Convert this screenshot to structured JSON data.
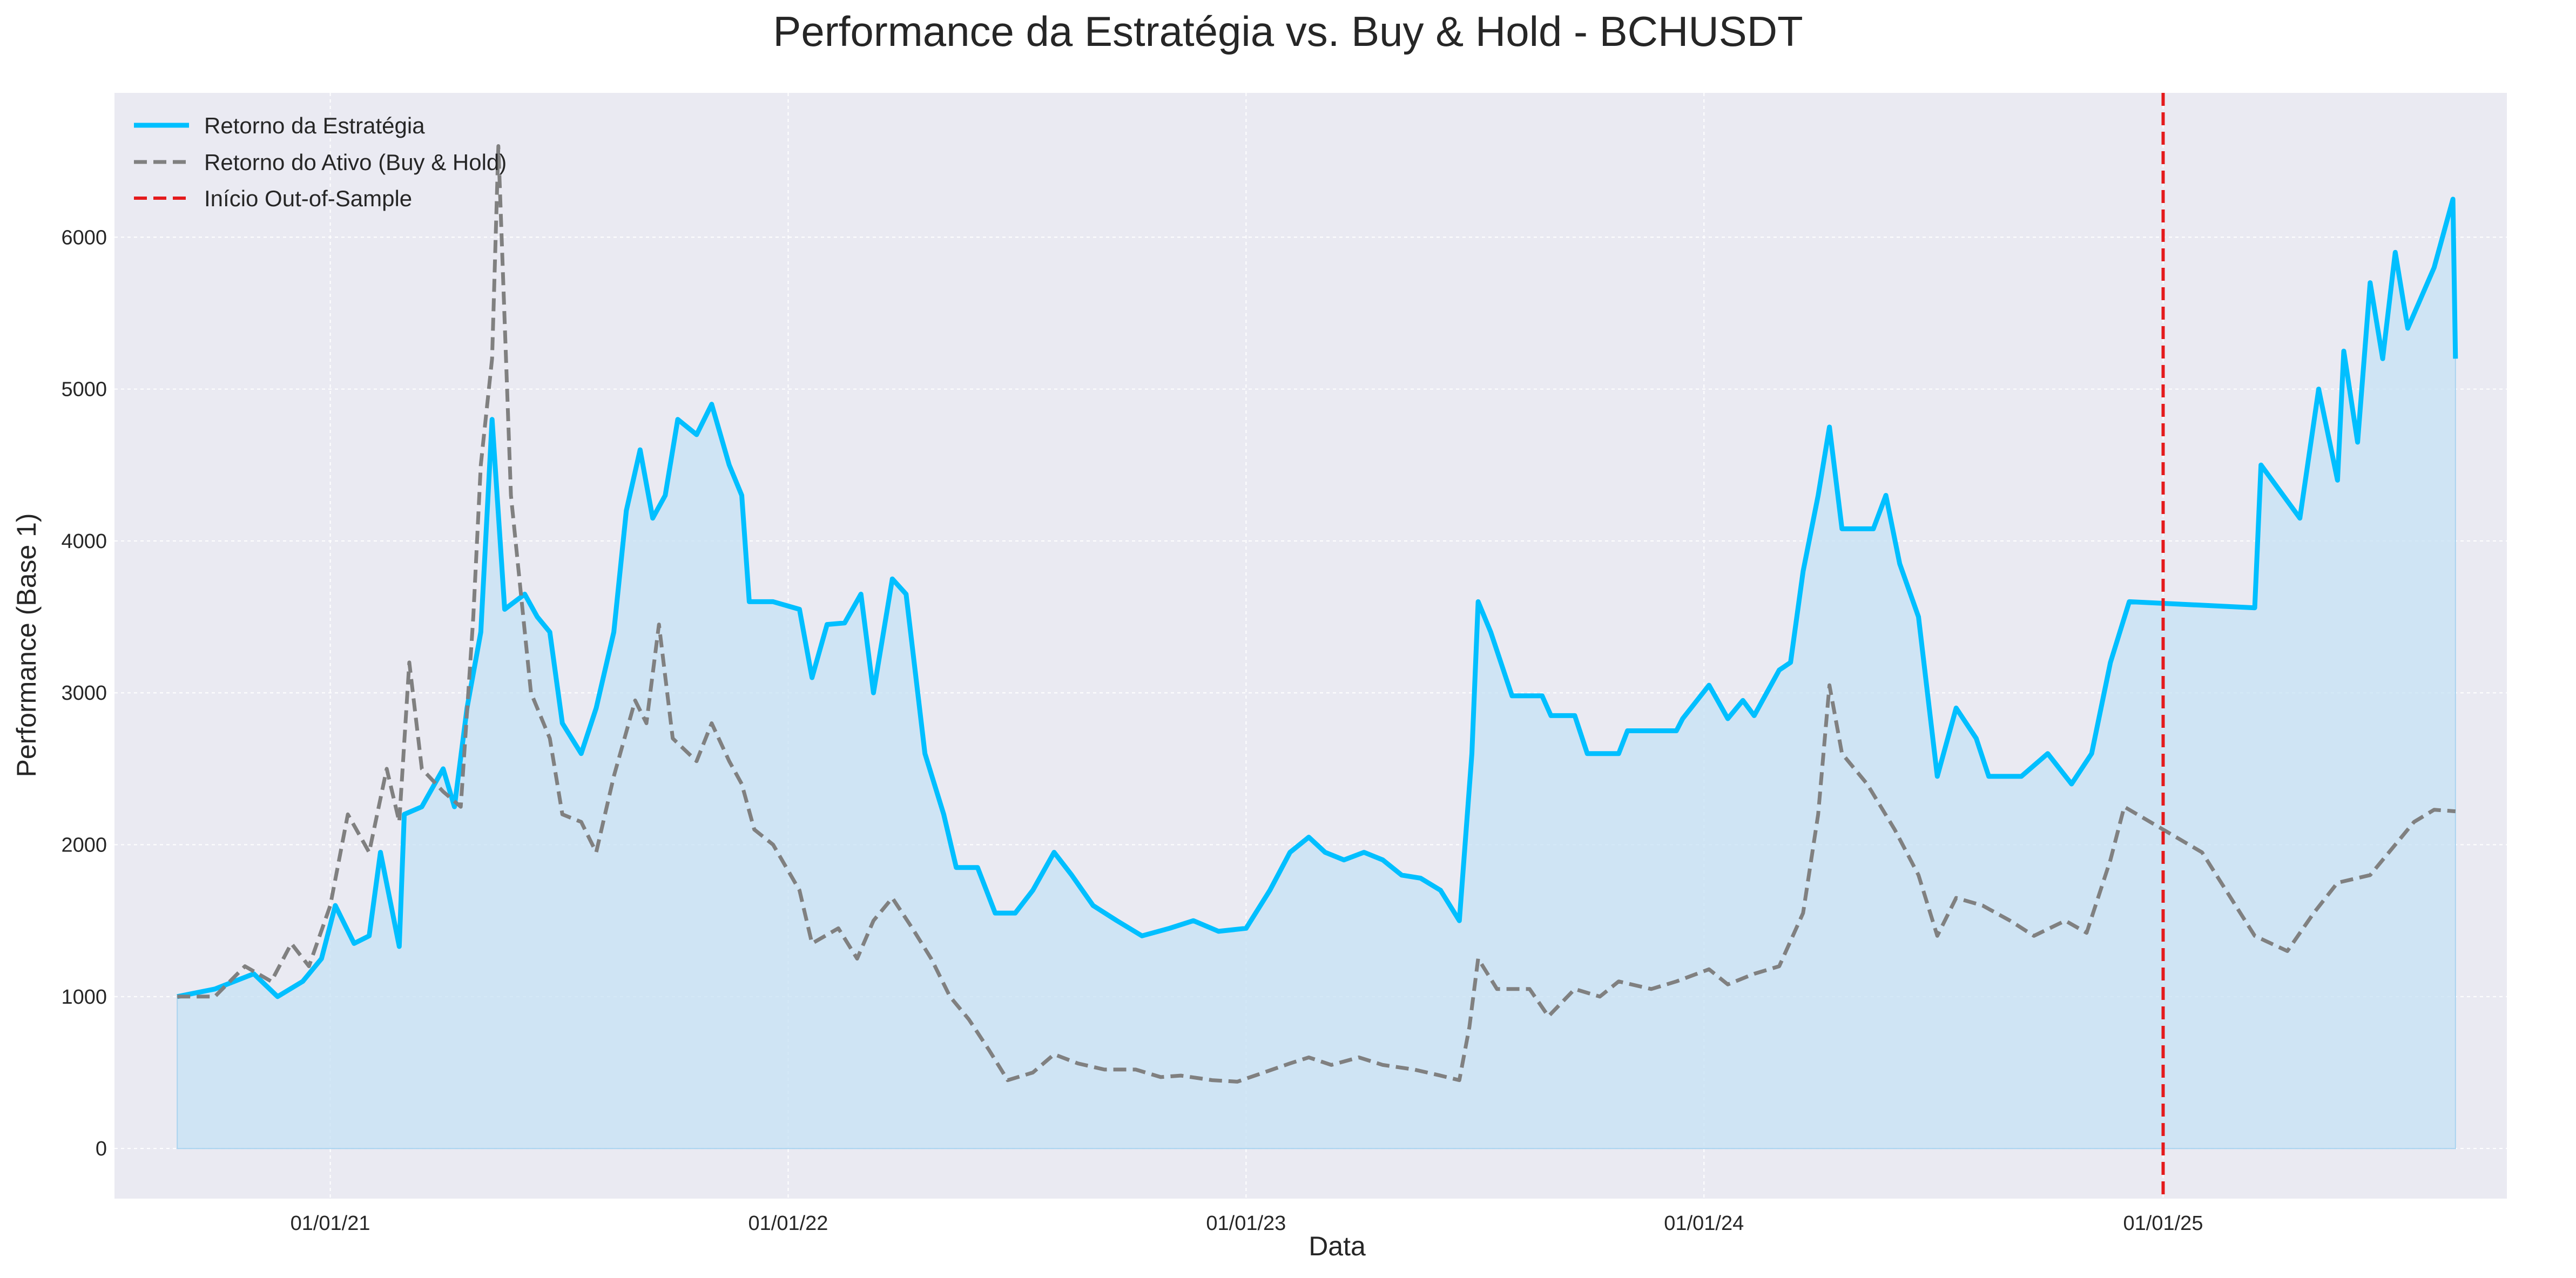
{
  "colors": {
    "background": "#eaeaf2",
    "grid": "#ffffff",
    "strategy": "#00bfff",
    "strategy_fill": "#c6e2f4",
    "asset": "#808080",
    "oos_line": "#e41a1c"
  },
  "chart_data": {
    "type": "line",
    "title": "Performance da Estratégia vs. Buy & Hold - BCHUSDT",
    "xlabel": "Data",
    "ylabel": "Performance (Base 1)",
    "x_tick_labels": [
      "01/01/21",
      "01/01/22",
      "01/01/23",
      "01/01/24",
      "01/01/25"
    ],
    "x_tick_dates": [
      "2021-01-01",
      "2022-01-01",
      "2023-01-01",
      "2024-01-01",
      "2025-01-01"
    ],
    "y_ticks": [
      0,
      1000,
      2000,
      3000,
      4000,
      5000,
      6000
    ],
    "xlim": [
      "2020-07-13",
      "2025-10-02"
    ],
    "ylim": [
      -330,
      6950
    ],
    "grid": true,
    "legend_position": "top-left",
    "out_of_sample_start": "2025-01-01",
    "series": [
      {
        "name": "Retorno da Estratégia",
        "style": "solid",
        "filled": true,
        "points": [
          [
            "2020-09-01",
            1000
          ],
          [
            "2020-10-01",
            1050
          ],
          [
            "2020-11-01",
            1150
          ],
          [
            "2020-11-20",
            1000
          ],
          [
            "2020-12-10",
            1100
          ],
          [
            "2020-12-25",
            1250
          ],
          [
            "2021-01-05",
            1600
          ],
          [
            "2021-01-20",
            1350
          ],
          [
            "2021-02-01",
            1400
          ],
          [
            "2021-02-10",
            1950
          ],
          [
            "2021-02-25",
            1330
          ],
          [
            "2021-03-01",
            2200
          ],
          [
            "2021-03-15",
            2250
          ],
          [
            "2021-04-01",
            2500
          ],
          [
            "2021-04-10",
            2250
          ],
          [
            "2021-04-20",
            2900
          ],
          [
            "2021-05-01",
            3400
          ],
          [
            "2021-05-10",
            4800
          ],
          [
            "2021-05-20",
            3550
          ],
          [
            "2021-06-05",
            3650
          ],
          [
            "2021-06-15",
            3500
          ],
          [
            "2021-06-25",
            3400
          ],
          [
            "2021-07-05",
            2800
          ],
          [
            "2021-07-20",
            2600
          ],
          [
            "2021-08-01",
            2900
          ],
          [
            "2021-08-15",
            3400
          ],
          [
            "2021-08-25",
            4200
          ],
          [
            "2021-09-05",
            4600
          ],
          [
            "2021-09-15",
            4150
          ],
          [
            "2021-09-25",
            4300
          ],
          [
            "2021-10-05",
            4800
          ],
          [
            "2021-10-20",
            4700
          ],
          [
            "2021-11-01",
            4900
          ],
          [
            "2021-11-15",
            4500
          ],
          [
            "2021-11-25",
            4300
          ],
          [
            "2021-12-01",
            3600
          ],
          [
            "2021-12-20",
            3600
          ],
          [
            "2022-01-10",
            3550
          ],
          [
            "2022-01-20",
            3100
          ],
          [
            "2022-02-01",
            3450
          ],
          [
            "2022-02-15",
            3460
          ],
          [
            "2022-02-28",
            3650
          ],
          [
            "2022-03-10",
            3000
          ],
          [
            "2022-03-25",
            3750
          ],
          [
            "2022-04-05",
            3650
          ],
          [
            "2022-04-20",
            2600
          ],
          [
            "2022-05-05",
            2200
          ],
          [
            "2022-05-15",
            1850
          ],
          [
            "2022-06-01",
            1850
          ],
          [
            "2022-06-15",
            1550
          ],
          [
            "2022-07-01",
            1550
          ],
          [
            "2022-07-15",
            1700
          ],
          [
            "2022-08-01",
            1950
          ],
          [
            "2022-08-15",
            1800
          ],
          [
            "2022-09-01",
            1600
          ],
          [
            "2022-09-20",
            1500
          ],
          [
            "2022-10-10",
            1400
          ],
          [
            "2022-11-01",
            1450
          ],
          [
            "2022-11-20",
            1500
          ],
          [
            "2022-12-10",
            1430
          ],
          [
            "2023-01-01",
            1450
          ],
          [
            "2023-01-20",
            1700
          ],
          [
            "2023-02-05",
            1950
          ],
          [
            "2023-02-20",
            2050
          ],
          [
            "2023-03-05",
            1950
          ],
          [
            "2023-03-20",
            1900
          ],
          [
            "2023-04-05",
            1950
          ],
          [
            "2023-04-20",
            1900
          ],
          [
            "2023-05-05",
            1800
          ],
          [
            "2023-05-20",
            1780
          ],
          [
            "2023-06-05",
            1700
          ],
          [
            "2023-06-20",
            1500
          ],
          [
            "2023-06-30",
            2600
          ],
          [
            "2023-07-05",
            3600
          ],
          [
            "2023-07-15",
            3400
          ],
          [
            "2023-08-01",
            2980
          ],
          [
            "2023-08-25",
            2980
          ],
          [
            "2023-09-01",
            2850
          ],
          [
            "2023-09-20",
            2850
          ],
          [
            "2023-09-30",
            2600
          ],
          [
            "2023-10-25",
            2600
          ],
          [
            "2023-11-01",
            2750
          ],
          [
            "2023-12-10",
            2750
          ],
          [
            "2023-12-15",
            2830
          ],
          [
            "2024-01-05",
            3050
          ],
          [
            "2024-01-20",
            2830
          ],
          [
            "2024-02-01",
            2950
          ],
          [
            "2024-02-10",
            2850
          ],
          [
            "2024-03-01",
            3150
          ],
          [
            "2024-03-10",
            3200
          ],
          [
            "2024-03-20",
            3800
          ],
          [
            "2024-04-01",
            4300
          ],
          [
            "2024-04-10",
            4750
          ],
          [
            "2024-04-20",
            4080
          ],
          [
            "2024-05-15",
            4080
          ],
          [
            "2024-05-25",
            4300
          ],
          [
            "2024-06-05",
            3850
          ],
          [
            "2024-06-20",
            3500
          ],
          [
            "2024-07-05",
            2450
          ],
          [
            "2024-07-20",
            2900
          ],
          [
            "2024-08-05",
            2700
          ],
          [
            "2024-08-15",
            2450
          ],
          [
            "2024-09-10",
            2450
          ],
          [
            "2024-10-01",
            2600
          ],
          [
            "2024-10-20",
            2400
          ],
          [
            "2024-11-05",
            2600
          ],
          [
            "2024-11-20",
            3200
          ],
          [
            "2024-12-05",
            3600
          ],
          [
            "2025-03-15",
            3560
          ],
          [
            "2025-03-20",
            4500
          ],
          [
            "2025-04-20",
            4150
          ],
          [
            "2025-05-05",
            5000
          ],
          [
            "2025-05-20",
            4400
          ],
          [
            "2025-05-25",
            5250
          ],
          [
            "2025-06-05",
            4650
          ],
          [
            "2025-06-15",
            5700
          ],
          [
            "2025-06-25",
            5200
          ],
          [
            "2025-07-05",
            5900
          ],
          [
            "2025-07-15",
            5400
          ],
          [
            "2025-08-05",
            5800
          ],
          [
            "2025-08-20",
            6250
          ],
          [
            "2025-08-22",
            5200
          ]
        ]
      },
      {
        "name": "Retorno do Ativo (Buy & Hold)",
        "style": "dashed",
        "filled": false,
        "points": [
          [
            "2020-09-01",
            1000
          ],
          [
            "2020-10-01",
            1000
          ],
          [
            "2020-10-25",
            1200
          ],
          [
            "2020-11-15",
            1100
          ],
          [
            "2020-12-01",
            1350
          ],
          [
            "2020-12-15",
            1200
          ],
          [
            "2021-01-01",
            1600
          ],
          [
            "2021-01-15",
            2200
          ],
          [
            "2021-02-01",
            1950
          ],
          [
            "2021-02-15",
            2500
          ],
          [
            "2021-02-25",
            2150
          ],
          [
            "2021-03-05",
            3200
          ],
          [
            "2021-03-15",
            2500
          ],
          [
            "2021-04-01",
            2350
          ],
          [
            "2021-04-15",
            2250
          ],
          [
            "2021-04-25",
            3500
          ],
          [
            "2021-05-01",
            4500
          ],
          [
            "2021-05-10",
            5200
          ],
          [
            "2021-05-15",
            6600
          ],
          [
            "2021-05-25",
            4300
          ],
          [
            "2021-06-10",
            3000
          ],
          [
            "2021-06-25",
            2700
          ],
          [
            "2021-07-05",
            2200
          ],
          [
            "2021-07-20",
            2150
          ],
          [
            "2021-08-01",
            1950
          ],
          [
            "2021-08-15",
            2450
          ],
          [
            "2021-09-01",
            2950
          ],
          [
            "2021-09-10",
            2800
          ],
          [
            "2021-09-20",
            3450
          ],
          [
            "2021-10-01",
            2700
          ],
          [
            "2021-10-20",
            2550
          ],
          [
            "2021-11-01",
            2800
          ],
          [
            "2021-11-15",
            2550
          ],
          [
            "2021-11-25",
            2400
          ],
          [
            "2021-12-05",
            2100
          ],
          [
            "2021-12-20",
            2000
          ],
          [
            "2022-01-10",
            1700
          ],
          [
            "2022-01-20",
            1350
          ],
          [
            "2022-02-10",
            1450
          ],
          [
            "2022-02-25",
            1250
          ],
          [
            "2022-03-10",
            1500
          ],
          [
            "2022-03-25",
            1650
          ],
          [
            "2022-04-10",
            1450
          ],
          [
            "2022-04-25",
            1250
          ],
          [
            "2022-05-10",
            1000
          ],
          [
            "2022-05-25",
            850
          ],
          [
            "2022-06-10",
            650
          ],
          [
            "2022-06-25",
            450
          ],
          [
            "2022-07-15",
            500
          ],
          [
            "2022-08-01",
            620
          ],
          [
            "2022-08-20",
            560
          ],
          [
            "2022-09-10",
            520
          ],
          [
            "2022-10-05",
            520
          ],
          [
            "2022-10-25",
            470
          ],
          [
            "2022-11-10",
            480
          ],
          [
            "2022-12-05",
            450
          ],
          [
            "2022-12-25",
            440
          ],
          [
            "2023-01-15",
            500
          ],
          [
            "2023-02-05",
            560
          ],
          [
            "2023-02-20",
            600
          ],
          [
            "2023-03-10",
            550
          ],
          [
            "2023-04-01",
            600
          ],
          [
            "2023-04-20",
            550
          ],
          [
            "2023-05-15",
            520
          ],
          [
            "2023-06-05",
            480
          ],
          [
            "2023-06-20",
            450
          ],
          [
            "2023-06-28",
            800
          ],
          [
            "2023-07-05",
            1250
          ],
          [
            "2023-07-20",
            1050
          ],
          [
            "2023-08-15",
            1050
          ],
          [
            "2023-08-30",
            870
          ],
          [
            "2023-09-20",
            1050
          ],
          [
            "2023-10-10",
            1000
          ],
          [
            "2023-10-25",
            1100
          ],
          [
            "2023-11-20",
            1050
          ],
          [
            "2023-12-10",
            1100
          ],
          [
            "2024-01-05",
            1180
          ],
          [
            "2024-01-20",
            1080
          ],
          [
            "2024-02-10",
            1150
          ],
          [
            "2024-03-01",
            1200
          ],
          [
            "2024-03-20",
            1550
          ],
          [
            "2024-04-01",
            2200
          ],
          [
            "2024-04-10",
            3050
          ],
          [
            "2024-04-20",
            2600
          ],
          [
            "2024-05-10",
            2400
          ],
          [
            "2024-06-01",
            2100
          ],
          [
            "2024-06-20",
            1800
          ],
          [
            "2024-07-05",
            1400
          ],
          [
            "2024-07-20",
            1650
          ],
          [
            "2024-08-10",
            1600
          ],
          [
            "2024-09-01",
            1500
          ],
          [
            "2024-09-20",
            1400
          ],
          [
            "2024-10-15",
            1500
          ],
          [
            "2024-11-01",
            1420
          ],
          [
            "2024-11-20",
            1900
          ],
          [
            "2024-12-01",
            2250
          ],
          [
            "2025-02-01",
            1950
          ],
          [
            "2025-03-15",
            1400
          ],
          [
            "2025-04-10",
            1300
          ],
          [
            "2025-05-01",
            1550
          ],
          [
            "2025-05-20",
            1750
          ],
          [
            "2025-06-15",
            1800
          ],
          [
            "2025-07-05",
            2000
          ],
          [
            "2025-07-20",
            2150
          ],
          [
            "2025-08-05",
            2230
          ],
          [
            "2025-08-22",
            2220
          ]
        ]
      },
      {
        "name": "Início Out-of-Sample",
        "style": "dashed",
        "filled": false,
        "points": []
      }
    ]
  }
}
